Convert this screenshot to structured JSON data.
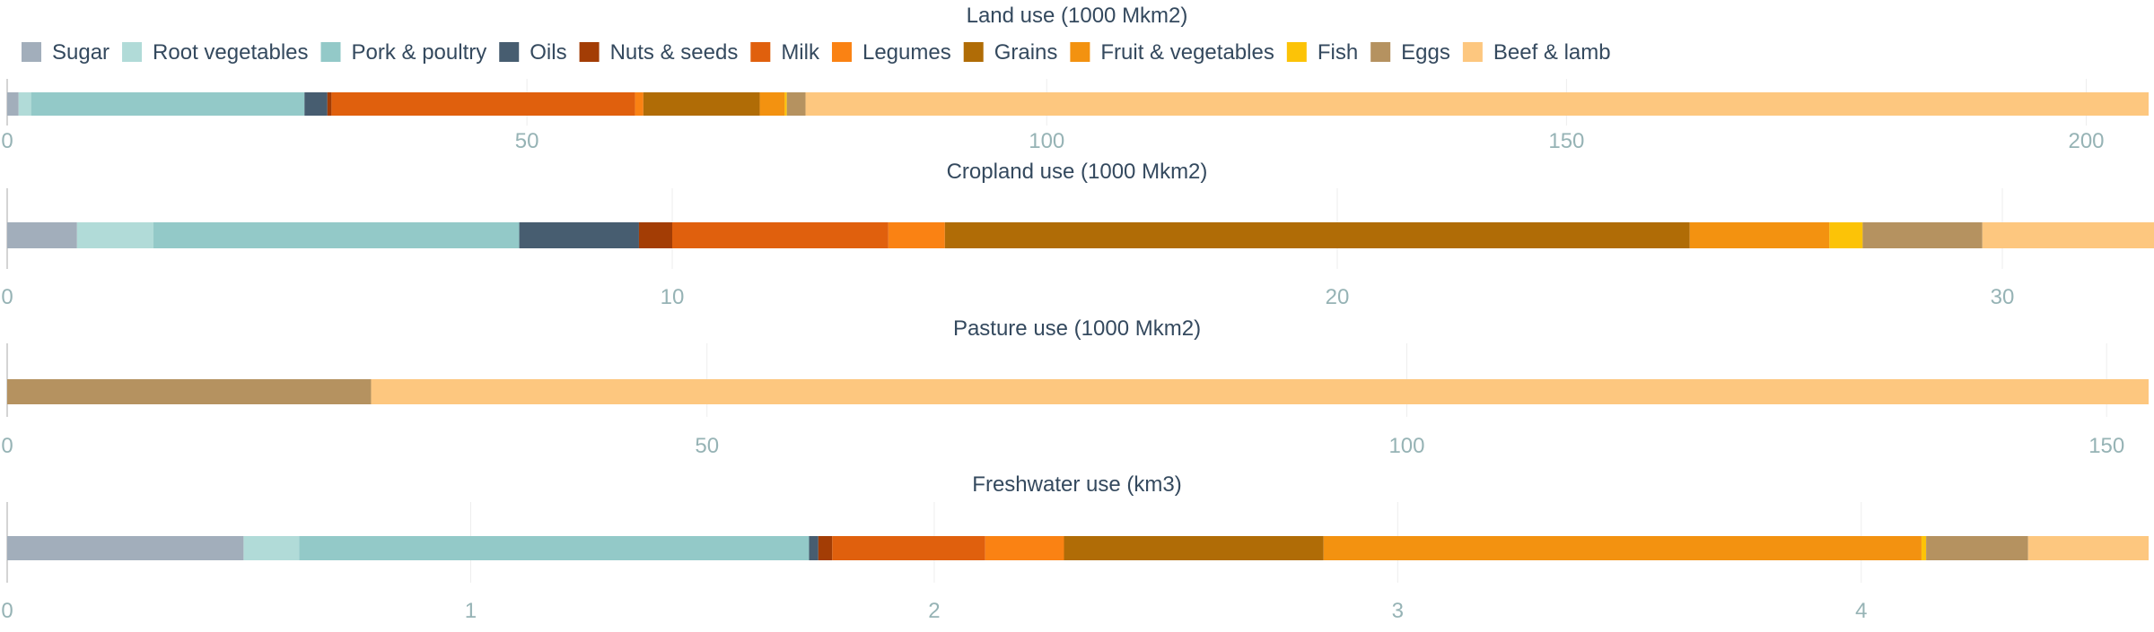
{
  "categories": [
    "Sugar",
    "Root vegetables",
    "Pork & poultry",
    "Oils",
    "Nuts & seeds",
    "Milk",
    "Legumes",
    "Grains",
    "Fruit & vegetables",
    "Fish",
    "Eggs",
    "Beef & lamb"
  ],
  "colors": {
    "Sugar": "#a2aebb",
    "Root vegetables": "#b1dbd8",
    "Pork & poultry": "#93c9c8",
    "Oils": "#475d70",
    "Nuts & seeds": "#a33d05",
    "Milk": "#e0600d",
    "Legumes": "#fa8213",
    "Grains": "#b06c06",
    "Fruit & vegetables": "#f39210",
    "Fish": "#fcc307",
    "Eggs": "#b59260",
    "Beef & lamb": "#fdc77f"
  },
  "text_color": "#34495e",
  "tick_color": "#96b3b5",
  "chart_data": [
    {
      "type": "bar",
      "orientation": "horizontal",
      "stacked": true,
      "title": "Land use (1000 Mkm2)",
      "xlim": [
        0,
        206
      ],
      "ticks": [
        0,
        50,
        100,
        150,
        200
      ],
      "values": [
        1.1,
        1.2,
        26.3,
        2.2,
        0.4,
        29.2,
        0.8,
        11.2,
        2.4,
        0.2,
        1.8,
        129.2
      ]
    },
    {
      "type": "bar",
      "orientation": "horizontal",
      "stacked": true,
      "title": "Cropland use (1000 Mkm2)",
      "xlim": [
        0,
        32.2
      ],
      "ticks": [
        0,
        10,
        20,
        30
      ],
      "values": [
        1.05,
        1.15,
        5.5,
        1.8,
        0.5,
        3.25,
        0.85,
        11.2,
        2.1,
        0.5,
        1.8,
        2.65
      ]
    },
    {
      "type": "bar",
      "orientation": "horizontal",
      "stacked": true,
      "title": "Pasture use (1000 Mkm2)",
      "xlim": [
        0,
        153
      ],
      "ticks": [
        0,
        50,
        100,
        150
      ],
      "values": [
        0,
        0,
        0,
        0,
        0,
        0,
        0,
        0,
        0,
        0,
        26,
        127
      ]
    },
    {
      "type": "bar",
      "orientation": "horizontal",
      "stacked": true,
      "title": "Freshwater use (km3)",
      "xlim": [
        0,
        4.62
      ],
      "ticks": [
        0,
        1,
        2,
        3,
        4
      ],
      "values": [
        0.51,
        0.12,
        1.1,
        0.02,
        0.03,
        0.33,
        0.17,
        0.56,
        1.29,
        0.01,
        0.22,
        0.26
      ]
    }
  ]
}
